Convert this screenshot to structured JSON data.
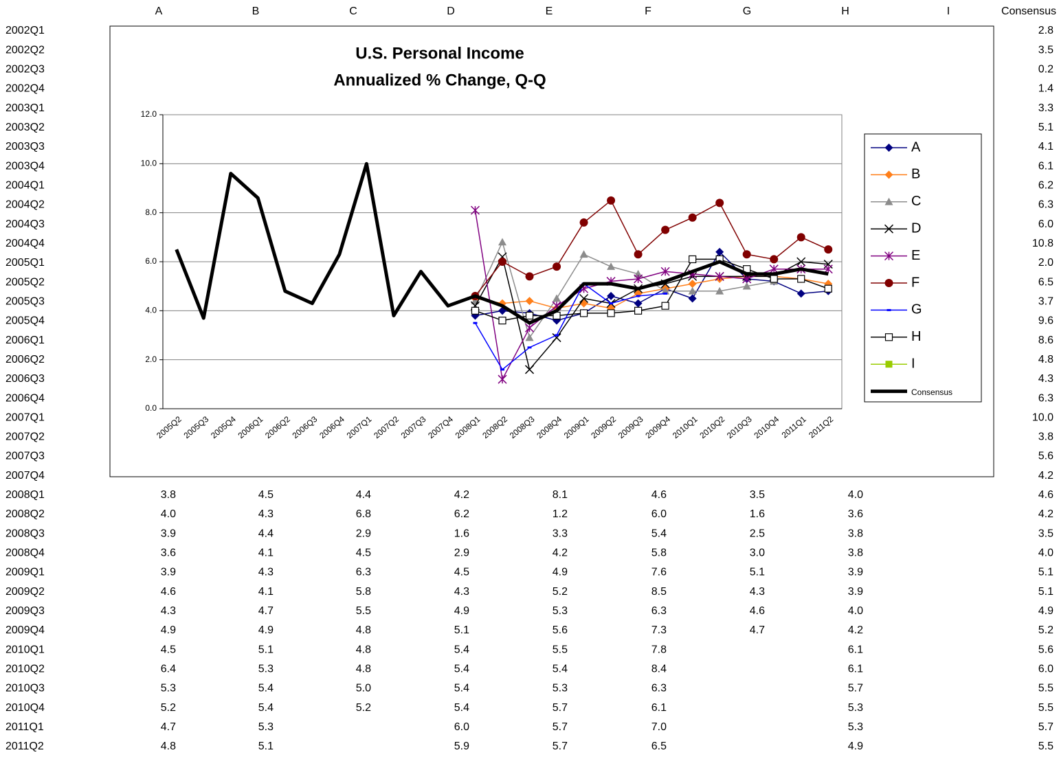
{
  "table": {
    "columns": [
      "A",
      "B",
      "C",
      "D",
      "E",
      "F",
      "G",
      "H",
      "I",
      "Consensus"
    ],
    "rows": [
      {
        "label": "2002Q1",
        "cells": [
          null,
          null,
          null,
          null,
          null,
          null,
          null,
          null,
          null,
          "2.8"
        ]
      },
      {
        "label": "2002Q2",
        "cells": [
          null,
          null,
          null,
          null,
          null,
          null,
          null,
          null,
          null,
          "3.5"
        ]
      },
      {
        "label": "2002Q3",
        "cells": [
          null,
          null,
          null,
          null,
          null,
          null,
          null,
          null,
          null,
          "0.2"
        ]
      },
      {
        "label": "2002Q4",
        "cells": [
          null,
          null,
          null,
          null,
          null,
          null,
          null,
          null,
          null,
          "1.4"
        ]
      },
      {
        "label": "2003Q1",
        "cells": [
          null,
          null,
          null,
          null,
          null,
          null,
          null,
          null,
          null,
          "3.3"
        ]
      },
      {
        "label": "2003Q2",
        "cells": [
          null,
          null,
          null,
          null,
          null,
          null,
          null,
          null,
          null,
          "5.1"
        ]
      },
      {
        "label": "2003Q3",
        "cells": [
          null,
          null,
          null,
          null,
          null,
          null,
          null,
          null,
          null,
          "4.1"
        ]
      },
      {
        "label": "2003Q4",
        "cells": [
          null,
          null,
          null,
          null,
          null,
          null,
          null,
          null,
          null,
          "6.1"
        ]
      },
      {
        "label": "2004Q1",
        "cells": [
          null,
          null,
          null,
          null,
          null,
          null,
          null,
          null,
          null,
          "6.2"
        ]
      },
      {
        "label": "2004Q2",
        "cells": [
          null,
          null,
          null,
          null,
          null,
          null,
          null,
          null,
          null,
          "6.3"
        ]
      },
      {
        "label": "2004Q3",
        "cells": [
          null,
          null,
          null,
          null,
          null,
          null,
          null,
          null,
          null,
          "6.0"
        ]
      },
      {
        "label": "2004Q4",
        "cells": [
          null,
          null,
          null,
          null,
          null,
          null,
          null,
          null,
          null,
          "10.8"
        ]
      },
      {
        "label": "2005Q1",
        "cells": [
          null,
          null,
          null,
          null,
          null,
          null,
          null,
          null,
          null,
          "2.0"
        ]
      },
      {
        "label": "2005Q2",
        "cells": [
          null,
          null,
          null,
          null,
          null,
          null,
          null,
          null,
          null,
          "6.5"
        ]
      },
      {
        "label": "2005Q3",
        "cells": [
          null,
          null,
          null,
          null,
          null,
          null,
          null,
          null,
          null,
          "3.7"
        ]
      },
      {
        "label": "2005Q4",
        "cells": [
          null,
          null,
          null,
          null,
          null,
          null,
          null,
          null,
          null,
          "9.6"
        ]
      },
      {
        "label": "2006Q1",
        "cells": [
          null,
          null,
          null,
          null,
          null,
          null,
          null,
          null,
          null,
          "8.6"
        ]
      },
      {
        "label": "2006Q2",
        "cells": [
          null,
          null,
          null,
          null,
          null,
          null,
          null,
          null,
          null,
          "4.8"
        ]
      },
      {
        "label": "2006Q3",
        "cells": [
          null,
          null,
          null,
          null,
          null,
          null,
          null,
          null,
          null,
          "4.3"
        ]
      },
      {
        "label": "2006Q4",
        "cells": [
          null,
          null,
          null,
          null,
          null,
          null,
          null,
          null,
          null,
          "6.3"
        ]
      },
      {
        "label": "2007Q1",
        "cells": [
          null,
          null,
          null,
          null,
          null,
          null,
          null,
          null,
          null,
          "10.0"
        ]
      },
      {
        "label": "2007Q2",
        "cells": [
          null,
          null,
          null,
          null,
          null,
          null,
          null,
          null,
          null,
          "3.8"
        ]
      },
      {
        "label": "2007Q3",
        "cells": [
          null,
          null,
          null,
          null,
          null,
          null,
          null,
          null,
          null,
          "5.6"
        ]
      },
      {
        "label": "2007Q4",
        "cells": [
          null,
          null,
          null,
          null,
          null,
          null,
          null,
          null,
          null,
          "4.2"
        ]
      },
      {
        "label": "2008Q1",
        "cells": [
          "3.8",
          "4.5",
          "4.4",
          "4.2",
          "8.1",
          "4.6",
          "3.5",
          "4.0",
          null,
          "4.6"
        ]
      },
      {
        "label": "2008Q2",
        "cells": [
          "4.0",
          "4.3",
          "6.8",
          "6.2",
          "1.2",
          "6.0",
          "1.6",
          "3.6",
          null,
          "4.2"
        ]
      },
      {
        "label": "2008Q3",
        "cells": [
          "3.9",
          "4.4",
          "2.9",
          "1.6",
          "3.3",
          "5.4",
          "2.5",
          "3.8",
          null,
          "3.5"
        ]
      },
      {
        "label": "2008Q4",
        "cells": [
          "3.6",
          "4.1",
          "4.5",
          "2.9",
          "4.2",
          "5.8",
          "3.0",
          "3.8",
          null,
          "4.0"
        ]
      },
      {
        "label": "2009Q1",
        "cells": [
          "3.9",
          "4.3",
          "6.3",
          "4.5",
          "4.9",
          "7.6",
          "5.1",
          "3.9",
          null,
          "5.1"
        ]
      },
      {
        "label": "2009Q2",
        "cells": [
          "4.6",
          "4.1",
          "5.8",
          "4.3",
          "5.2",
          "8.5",
          "4.3",
          "3.9",
          null,
          "5.1"
        ]
      },
      {
        "label": "2009Q3",
        "cells": [
          "4.3",
          "4.7",
          "5.5",
          "4.9",
          "5.3",
          "6.3",
          "4.6",
          "4.0",
          null,
          "4.9"
        ]
      },
      {
        "label": "2009Q4",
        "cells": [
          "4.9",
          "4.9",
          "4.8",
          "5.1",
          "5.6",
          "7.3",
          "4.7",
          "4.2",
          null,
          "5.2"
        ]
      },
      {
        "label": "2010Q1",
        "cells": [
          "4.5",
          "5.1",
          "4.8",
          "5.4",
          "5.5",
          "7.8",
          null,
          "6.1",
          null,
          "5.6"
        ]
      },
      {
        "label": "2010Q2",
        "cells": [
          "6.4",
          "5.3",
          "4.8",
          "5.4",
          "5.4",
          "8.4",
          null,
          "6.1",
          null,
          "6.0"
        ]
      },
      {
        "label": "2010Q3",
        "cells": [
          "5.3",
          "5.4",
          "5.0",
          "5.4",
          "5.3",
          "6.3",
          null,
          "5.7",
          null,
          "5.5"
        ]
      },
      {
        "label": "2010Q4",
        "cells": [
          "5.2",
          "5.4",
          "5.2",
          "5.4",
          "5.7",
          "6.1",
          null,
          "5.3",
          null,
          "5.5"
        ]
      },
      {
        "label": "2011Q1",
        "cells": [
          "4.7",
          "5.3",
          null,
          "6.0",
          "5.7",
          "7.0",
          null,
          "5.3",
          null,
          "5.7"
        ]
      },
      {
        "label": "2011Q2",
        "cells": [
          "4.8",
          "5.1",
          null,
          "5.9",
          "5.7",
          "6.5",
          null,
          "4.9",
          null,
          "5.5"
        ]
      }
    ]
  },
  "chart_data": {
    "type": "line",
    "title": [
      "U.S. Personal Income",
      "Annualized % Change, Q-Q"
    ],
    "categories": [
      "2005Q2",
      "2005Q3",
      "2005Q4",
      "2006Q1",
      "2006Q2",
      "2006Q3",
      "2006Q4",
      "2007Q1",
      "2007Q2",
      "2007Q3",
      "2007Q4",
      "2008Q1",
      "2008Q2",
      "2008Q3",
      "2008Q4",
      "2009Q1",
      "2009Q2",
      "2009Q3",
      "2009Q4",
      "2010Q1",
      "2010Q2",
      "2010Q3",
      "2010Q4",
      "2011Q1",
      "2011Q2"
    ],
    "ylim": [
      0,
      12
    ],
    "yticks": [
      {
        "value": 0,
        "label": "0.0"
      },
      {
        "value": 2,
        "label": "2.0"
      },
      {
        "value": 4,
        "label": "4.0"
      },
      {
        "value": 6,
        "label": "6.0"
      },
      {
        "value": 8,
        "label": "8.0"
      },
      {
        "value": 10,
        "label": "10.0"
      },
      {
        "value": 12,
        "label": "12.0"
      }
    ],
    "grid": true,
    "legend": "right",
    "series": [
      {
        "name": "A",
        "color": "#000080",
        "marker": "diamond",
        "values": [
          null,
          null,
          null,
          null,
          null,
          null,
          null,
          null,
          null,
          null,
          null,
          3.8,
          4.0,
          3.9,
          3.6,
          3.9,
          4.6,
          4.3,
          4.9,
          4.5,
          6.4,
          5.3,
          5.2,
          4.7,
          4.8
        ]
      },
      {
        "name": "B",
        "color": "#ff7f1a",
        "marker": "diamond",
        "values": [
          null,
          null,
          null,
          null,
          null,
          null,
          null,
          null,
          null,
          null,
          null,
          4.5,
          4.3,
          4.4,
          4.1,
          4.3,
          4.1,
          4.7,
          4.9,
          5.1,
          5.3,
          5.4,
          5.4,
          5.3,
          5.1
        ]
      },
      {
        "name": "C",
        "color": "#8c8c8c",
        "marker": "triangle",
        "values": [
          null,
          null,
          null,
          null,
          null,
          null,
          null,
          null,
          null,
          null,
          null,
          4.4,
          6.8,
          2.9,
          4.5,
          6.3,
          5.8,
          5.5,
          4.8,
          4.8,
          4.8,
          5.0,
          5.2,
          null,
          null
        ]
      },
      {
        "name": "D",
        "color": "#000000",
        "marker": "x",
        "values": [
          null,
          null,
          null,
          null,
          null,
          null,
          null,
          null,
          null,
          null,
          null,
          4.2,
          6.2,
          1.6,
          2.9,
          4.5,
          4.3,
          4.9,
          5.1,
          5.4,
          5.4,
          5.4,
          5.4,
          6.0,
          5.9
        ]
      },
      {
        "name": "E",
        "color": "#800080",
        "marker": "star",
        "values": [
          null,
          null,
          null,
          null,
          null,
          null,
          null,
          null,
          null,
          null,
          null,
          8.1,
          1.2,
          3.3,
          4.2,
          4.9,
          5.2,
          5.3,
          5.6,
          5.5,
          5.4,
          5.3,
          5.7,
          5.7,
          5.7
        ]
      },
      {
        "name": "F",
        "color": "#800000",
        "marker": "circle",
        "values": [
          null,
          null,
          null,
          null,
          null,
          null,
          null,
          null,
          null,
          null,
          null,
          4.6,
          6.0,
          5.4,
          5.8,
          7.6,
          8.5,
          6.3,
          7.3,
          7.8,
          8.4,
          6.3,
          6.1,
          7.0,
          6.5
        ]
      },
      {
        "name": "G",
        "color": "#0000ff",
        "marker": "dash",
        "values": [
          null,
          null,
          null,
          null,
          null,
          null,
          null,
          null,
          null,
          null,
          null,
          3.5,
          1.6,
          2.5,
          3.0,
          5.1,
          4.3,
          4.6,
          4.7,
          null,
          null,
          null,
          null,
          null,
          null
        ]
      },
      {
        "name": "H",
        "color": "#000000",
        "marker": "square-open",
        "values": [
          null,
          null,
          null,
          null,
          null,
          null,
          null,
          null,
          null,
          null,
          null,
          4.0,
          3.6,
          3.8,
          3.8,
          3.9,
          3.9,
          4.0,
          4.2,
          6.1,
          6.1,
          5.7,
          5.3,
          5.3,
          4.9
        ]
      },
      {
        "name": "I",
        "color": "#99cc00",
        "marker": "square",
        "values": [
          null,
          null,
          null,
          null,
          null,
          null,
          null,
          null,
          null,
          null,
          null,
          null,
          null,
          null,
          null,
          null,
          null,
          null,
          null,
          null,
          null,
          null,
          null,
          null,
          null
        ]
      },
      {
        "name": "Consensus",
        "color": "#000000",
        "marker": "none",
        "values": [
          6.5,
          3.7,
          9.6,
          8.6,
          4.8,
          4.3,
          6.3,
          10.0,
          3.8,
          5.6,
          4.2,
          4.6,
          4.2,
          3.5,
          4.0,
          5.1,
          5.1,
          4.9,
          5.2,
          5.6,
          6.0,
          5.5,
          5.5,
          5.7,
          5.5
        ]
      }
    ]
  }
}
